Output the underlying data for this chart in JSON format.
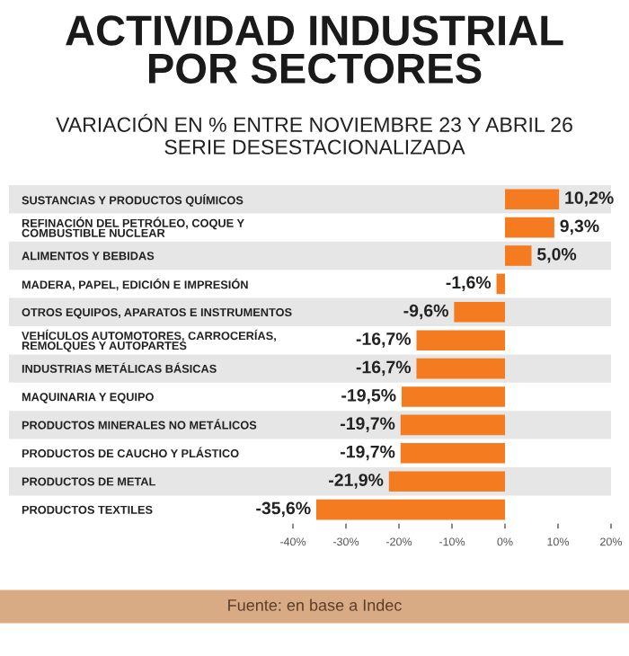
{
  "chart_data": {
    "type": "bar",
    "orientation": "horizontal",
    "title": "ACTIVIDAD INDUSTRIAL\nPOR SECTORES",
    "subtitle": "VARIACIÓN EN % ENTRE NOVIEMBRE 23 Y ABRIL 26\nSERIE DESESTACIONALIZADA",
    "categories": [
      "SUSTANCIAS Y PRODUCTOS QUÍMICOS",
      "REFINACIÓN DEL PETRÓLEO, COQUE Y\nCOMBUSTIBLE NUCLEAR",
      "ALIMENTOS Y BEBIDAS",
      "MADERA, PAPEL, EDICIÓN E IMPRESIÓN",
      "OTROS EQUIPOS, APARATOS E INSTRUMENTOS",
      "VEHÍCULOS AUTOMOTORES, CARROCERÍAS,\nREMOLQUES Y AUTOPARTES",
      "INDUSTRIAS METÁLICAS BÁSICAS",
      "MAQUINARIA Y EQUIPO",
      "PRODUCTOS MINERALES NO METÁLICOS",
      "PRODUCTOS DE CAUCHO Y PLÁSTICO",
      "PRODUCTOS DE METAL",
      "PRODUCTOS TEXTILES"
    ],
    "values": [
      10.2,
      9.3,
      5.0,
      -1.6,
      -9.6,
      -16.7,
      -16.7,
      -19.5,
      -19.7,
      -19.7,
      -21.9,
      -35.6
    ],
    "value_labels": [
      "10,2%",
      "9,3%",
      "5,0%",
      "-1,6%",
      "-9,6%",
      "-16,7%",
      "-16,7%",
      "-19,5%",
      "-19,7%",
      "-19,7%",
      "-21,9%",
      "-35,6%"
    ],
    "color": "#f47b20",
    "xlim": [
      -40,
      20
    ],
    "xticks": [
      {
        "value": -40,
        "label": "-40%"
      },
      {
        "value": -30,
        "label": "-30%"
      },
      {
        "value": -20,
        "label": "-20%"
      },
      {
        "value": -10,
        "label": "-10%"
      },
      {
        "value": 0,
        "label": "0%"
      },
      {
        "value": 10,
        "label": "10%"
      },
      {
        "value": 20,
        "label": "20%"
      }
    ],
    "grid": false,
    "legend": false,
    "annotations": [
      "Fuente: en base a Indec"
    ]
  }
}
